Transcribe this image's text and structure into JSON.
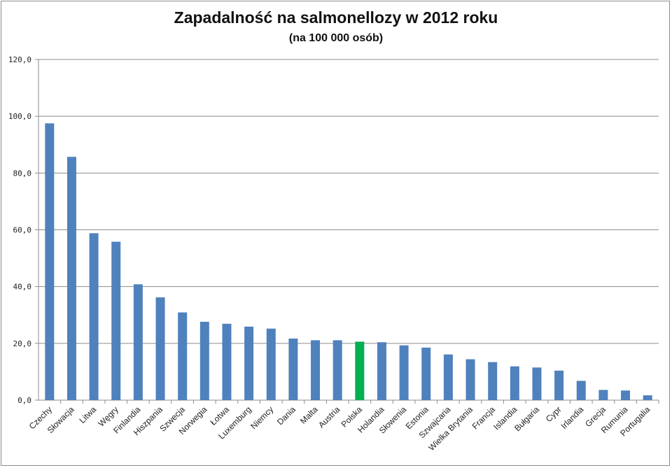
{
  "chart_data": {
    "type": "bar",
    "title": "Zapadalność na salmonellozy w 2012 roku",
    "subtitle": "(na 100 000 osób)",
    "ylim": [
      0,
      120
    ],
    "yticks": [
      "0,0",
      "20,0",
      "40,0",
      "60,0",
      "80,0",
      "100,0",
      "120,0"
    ],
    "grid": true,
    "colors": {
      "default": "#4f81bd",
      "highlight": "#00b050"
    },
    "highlight": "Polska",
    "categories": [
      "Czechy",
      "Słowacja",
      "Litwa",
      "Węgry",
      "Finlandia",
      "Hiszpania",
      "Szwecja",
      "Norwegia",
      "Łotwa",
      "Luxemburg",
      "Niemcy",
      "Dania",
      "Malta",
      "Austria",
      "Polska",
      "Holandia",
      "Słowenia",
      "Estonia",
      "Szwajcaria",
      "Wielka Brytania",
      "Francja",
      "Islandia",
      "Bułgaria",
      "Cypr",
      "Irlandia",
      "Grecja",
      "Rumunia",
      "Portugalia"
    ],
    "values": [
      97.5,
      85.7,
      58.8,
      55.8,
      40.8,
      36.2,
      30.9,
      27.6,
      26.9,
      25.9,
      25.2,
      21.7,
      21.1,
      21.1,
      20.6,
      20.4,
      19.3,
      18.5,
      16.1,
      14.4,
      13.4,
      11.9,
      11.5,
      10.4,
      6.8,
      3.6,
      3.4,
      1.7
    ]
  }
}
